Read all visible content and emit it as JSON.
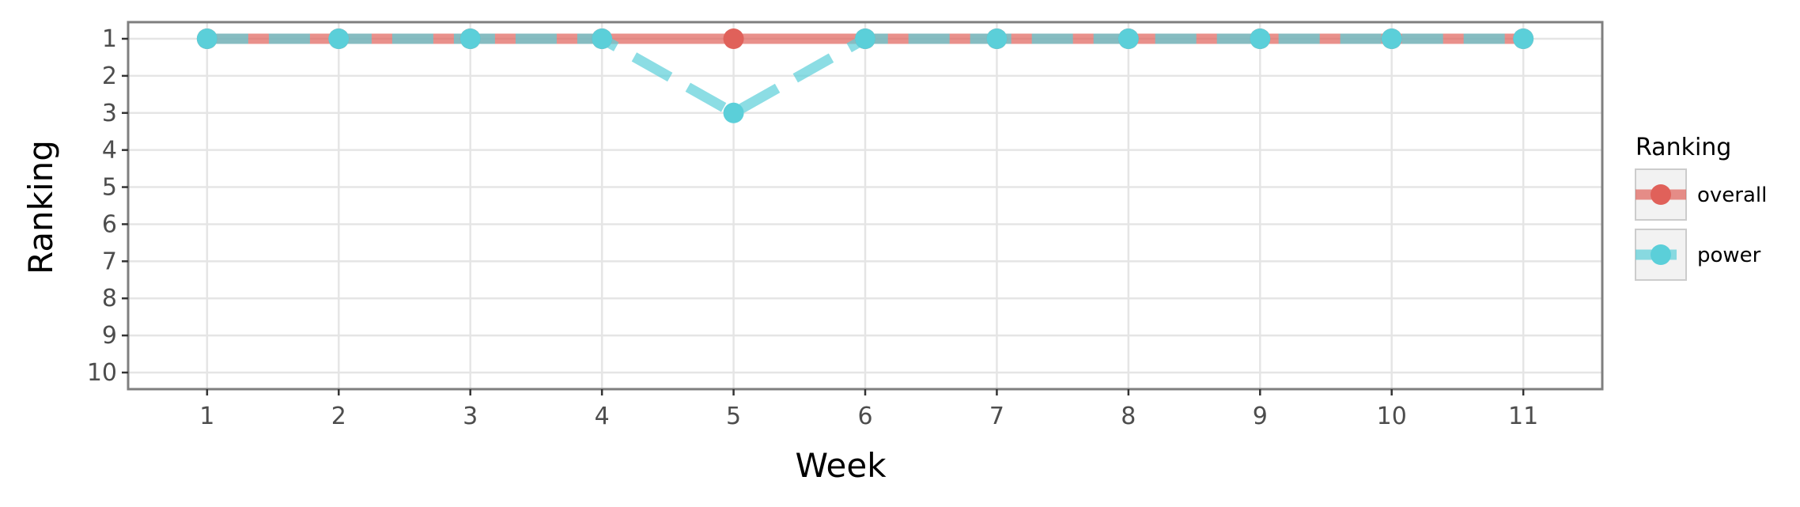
{
  "chart_data": {
    "type": "line",
    "title": "",
    "xlabel": "Week",
    "ylabel": "Ranking",
    "x": [
      1,
      2,
      3,
      4,
      5,
      6,
      7,
      8,
      9,
      10,
      11
    ],
    "x_ticks": [
      "1",
      "2",
      "3",
      "4",
      "5",
      "6",
      "7",
      "8",
      "9",
      "10",
      "11"
    ],
    "y_ticks": [
      "1",
      "2",
      "3",
      "4",
      "5",
      "6",
      "7",
      "8",
      "9",
      "10"
    ],
    "xlim": [
      0.4,
      11.6
    ],
    "ylim": [
      1,
      10
    ],
    "y_reversed": true,
    "grid": true,
    "legend": {
      "title": "Ranking",
      "position": "right"
    },
    "series": [
      {
        "name": "overall",
        "values": [
          1,
          1,
          1,
          1,
          1,
          1,
          1,
          1,
          1,
          1,
          1
        ],
        "color": "#E0615A",
        "line_style": "solid"
      },
      {
        "name": "power",
        "values": [
          1,
          1,
          1,
          1,
          3,
          1,
          1,
          1,
          1,
          1,
          1
        ],
        "color": "#5BCFD9",
        "line_style": "dashed"
      }
    ]
  }
}
